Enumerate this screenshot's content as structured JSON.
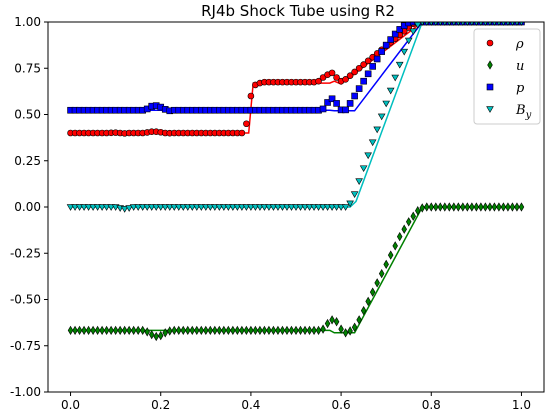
{
  "chart_data": {
    "type": "line",
    "title": "RJ4b Shock Tube using R2",
    "xlabel": "",
    "ylabel": "",
    "xlim": [
      -0.05,
      1.05
    ],
    "ylim": [
      -1.0,
      1.0
    ],
    "xticks": [
      "0.0",
      "0.2",
      "0.4",
      "0.6",
      "0.8",
      "1.0"
    ],
    "yticks": [
      "-1.00",
      "-0.75",
      "-0.50",
      "-0.25",
      "0.00",
      "0.25",
      "0.50",
      "0.75",
      "1.00"
    ],
    "grid": false,
    "legend_position": "top-right",
    "legend": [
      {
        "label": "ρ",
        "marker": "circle",
        "fill": "#ff0000"
      },
      {
        "label": "u",
        "marker": "diamond",
        "fill": "#008000"
      },
      {
        "label": "p",
        "marker": "square",
        "fill": "#0000ff"
      },
      {
        "label": "B",
        "sub": "y",
        "marker": "triangle-down",
        "fill": "#00bfbf"
      }
    ],
    "series": [
      {
        "name": "ρ",
        "role": "exact",
        "color": "#ff0000",
        "x": [
          0.0,
          0.395,
          0.405,
          0.575,
          0.585,
          0.6,
          0.78,
          1.0
        ],
        "y": [
          0.4,
          0.4,
          0.67,
          0.67,
          0.68,
          0.665,
          1.0,
          1.0
        ]
      },
      {
        "name": "u",
        "role": "exact",
        "color": "#008000",
        "x": [
          0.0,
          0.575,
          0.585,
          0.63,
          0.78,
          1.0
        ],
        "y": [
          -0.667,
          -0.667,
          -0.68,
          -0.68,
          0.0,
          0.0
        ]
      },
      {
        "name": "p",
        "role": "exact",
        "color": "#0000ff",
        "x": [
          0.0,
          0.575,
          0.585,
          0.63,
          0.78,
          1.0
        ],
        "y": [
          0.523,
          0.523,
          0.52,
          0.52,
          1.0,
          1.0
        ]
      },
      {
        "name": "B_y",
        "role": "exact",
        "color": "#00bfbf",
        "x": [
          0.0,
          0.62,
          0.633,
          0.78,
          1.0
        ],
        "y": [
          0.0,
          0.0,
          0.03,
          1.0,
          1.0
        ]
      },
      {
        "name": "ρ",
        "role": "numerical",
        "marker": "circle",
        "fill": "#ff0000",
        "x": [
          0.0,
          0.01,
          0.02,
          0.03,
          0.04,
          0.05,
          0.06,
          0.07,
          0.08,
          0.09,
          0.1,
          0.11,
          0.12,
          0.13,
          0.14,
          0.15,
          0.16,
          0.17,
          0.18,
          0.19,
          0.2,
          0.21,
          0.22,
          0.23,
          0.24,
          0.25,
          0.26,
          0.27,
          0.28,
          0.29,
          0.3,
          0.31,
          0.32,
          0.33,
          0.34,
          0.35,
          0.36,
          0.37,
          0.38,
          0.39,
          0.4,
          0.41,
          0.42,
          0.43,
          0.44,
          0.45,
          0.46,
          0.47,
          0.48,
          0.49,
          0.5,
          0.51,
          0.52,
          0.53,
          0.54,
          0.55,
          0.56,
          0.57,
          0.58,
          0.59,
          0.6,
          0.61,
          0.62,
          0.63,
          0.64,
          0.65,
          0.66,
          0.67,
          0.68,
          0.69,
          0.7,
          0.71,
          0.72,
          0.73,
          0.74,
          0.75,
          0.76,
          0.77,
          0.78,
          0.79,
          0.8,
          0.81,
          0.82,
          0.83,
          0.84,
          0.85,
          0.86,
          0.87,
          0.88,
          0.89,
          0.9,
          0.91,
          0.92,
          0.93,
          0.94,
          0.95,
          0.96,
          0.97,
          0.98,
          0.99,
          1.0
        ],
        "y": [
          0.4,
          0.4,
          0.4,
          0.4,
          0.4,
          0.4,
          0.4,
          0.4,
          0.4,
          0.401,
          0.402,
          0.4,
          0.398,
          0.4,
          0.4,
          0.4,
          0.4,
          0.403,
          0.407,
          0.407,
          0.404,
          0.4,
          0.399,
          0.4,
          0.4,
          0.4,
          0.4,
          0.4,
          0.4,
          0.4,
          0.4,
          0.4,
          0.4,
          0.4,
          0.4,
          0.4,
          0.4,
          0.4,
          0.4,
          0.45,
          0.6,
          0.66,
          0.67,
          0.675,
          0.675,
          0.675,
          0.675,
          0.675,
          0.675,
          0.675,
          0.675,
          0.675,
          0.675,
          0.675,
          0.675,
          0.68,
          0.7,
          0.715,
          0.725,
          0.7,
          0.68,
          0.69,
          0.71,
          0.73,
          0.75,
          0.77,
          0.79,
          0.81,
          0.83,
          0.85,
          0.87,
          0.89,
          0.91,
          0.93,
          0.95,
          0.97,
          0.99,
          1.0,
          1.0,
          1.0,
          1.0,
          1.0,
          1.0,
          1.0,
          1.0,
          1.0,
          1.0,
          1.0,
          1.0,
          1.0,
          1.0,
          1.0,
          1.0,
          1.0,
          1.0,
          1.0,
          1.0,
          1.0,
          1.0,
          1.0,
          1.0
        ]
      },
      {
        "name": "u",
        "role": "numerical",
        "marker": "diamond",
        "fill": "#008000",
        "x": [
          0.0,
          0.01,
          0.02,
          0.03,
          0.04,
          0.05,
          0.06,
          0.07,
          0.08,
          0.09,
          0.1,
          0.11,
          0.12,
          0.13,
          0.14,
          0.15,
          0.16,
          0.17,
          0.18,
          0.19,
          0.2,
          0.21,
          0.22,
          0.23,
          0.24,
          0.25,
          0.26,
          0.27,
          0.28,
          0.29,
          0.3,
          0.31,
          0.32,
          0.33,
          0.34,
          0.35,
          0.36,
          0.37,
          0.38,
          0.39,
          0.4,
          0.41,
          0.42,
          0.43,
          0.44,
          0.45,
          0.46,
          0.47,
          0.48,
          0.49,
          0.5,
          0.51,
          0.52,
          0.53,
          0.54,
          0.55,
          0.56,
          0.57,
          0.58,
          0.59,
          0.6,
          0.61,
          0.62,
          0.63,
          0.64,
          0.65,
          0.66,
          0.67,
          0.68,
          0.69,
          0.7,
          0.71,
          0.72,
          0.73,
          0.74,
          0.75,
          0.76,
          0.77,
          0.78,
          0.79,
          0.8,
          0.81,
          0.82,
          0.83,
          0.84,
          0.85,
          0.86,
          0.87,
          0.88,
          0.89,
          0.9,
          0.91,
          0.92,
          0.93,
          0.94,
          0.95,
          0.96,
          0.97,
          0.98,
          0.99,
          1.0
        ],
        "y": [
          -0.667,
          -0.667,
          -0.667,
          -0.667,
          -0.667,
          -0.667,
          -0.667,
          -0.667,
          -0.667,
          -0.667,
          -0.667,
          -0.667,
          -0.667,
          -0.667,
          -0.667,
          -0.667,
          -0.667,
          -0.675,
          -0.69,
          -0.7,
          -0.695,
          -0.68,
          -0.67,
          -0.667,
          -0.667,
          -0.667,
          -0.667,
          -0.667,
          -0.667,
          -0.667,
          -0.667,
          -0.667,
          -0.667,
          -0.667,
          -0.667,
          -0.667,
          -0.667,
          -0.667,
          -0.667,
          -0.667,
          -0.667,
          -0.667,
          -0.667,
          -0.667,
          -0.667,
          -0.667,
          -0.667,
          -0.667,
          -0.667,
          -0.667,
          -0.667,
          -0.667,
          -0.667,
          -0.667,
          -0.667,
          -0.667,
          -0.66,
          -0.63,
          -0.61,
          -0.62,
          -0.66,
          -0.68,
          -0.67,
          -0.65,
          -0.61,
          -0.56,
          -0.51,
          -0.46,
          -0.41,
          -0.36,
          -0.31,
          -0.26,
          -0.21,
          -0.16,
          -0.12,
          -0.08,
          -0.05,
          -0.02,
          -0.005,
          0.0,
          0.0,
          0.0,
          0.0,
          0.0,
          0.0,
          0.0,
          0.0,
          0.0,
          0.0,
          0.0,
          0.0,
          0.0,
          0.0,
          0.0,
          0.0,
          0.0,
          0.0,
          0.0,
          0.0,
          0.0,
          0.0
        ]
      },
      {
        "name": "p",
        "role": "numerical",
        "marker": "square",
        "fill": "#0000ff",
        "x": [
          0.0,
          0.01,
          0.02,
          0.03,
          0.04,
          0.05,
          0.06,
          0.07,
          0.08,
          0.09,
          0.1,
          0.11,
          0.12,
          0.13,
          0.14,
          0.15,
          0.16,
          0.17,
          0.18,
          0.19,
          0.2,
          0.21,
          0.22,
          0.23,
          0.24,
          0.25,
          0.26,
          0.27,
          0.28,
          0.29,
          0.3,
          0.31,
          0.32,
          0.33,
          0.34,
          0.35,
          0.36,
          0.37,
          0.38,
          0.39,
          0.4,
          0.41,
          0.42,
          0.43,
          0.44,
          0.45,
          0.46,
          0.47,
          0.48,
          0.49,
          0.5,
          0.51,
          0.52,
          0.53,
          0.54,
          0.55,
          0.56,
          0.57,
          0.58,
          0.59,
          0.6,
          0.61,
          0.62,
          0.63,
          0.64,
          0.65,
          0.66,
          0.67,
          0.68,
          0.69,
          0.7,
          0.71,
          0.72,
          0.73,
          0.74,
          0.75,
          0.76,
          0.77,
          0.78,
          0.79,
          0.8,
          0.81,
          0.82,
          0.83,
          0.84,
          0.85,
          0.86,
          0.87,
          0.88,
          0.89,
          0.9,
          0.91,
          0.92,
          0.93,
          0.94,
          0.95,
          0.96,
          0.97,
          0.98,
          0.99,
          1.0
        ],
        "y": [
          0.523,
          0.523,
          0.523,
          0.523,
          0.523,
          0.523,
          0.523,
          0.523,
          0.523,
          0.523,
          0.523,
          0.523,
          0.523,
          0.523,
          0.523,
          0.523,
          0.523,
          0.53,
          0.545,
          0.548,
          0.54,
          0.528,
          0.52,
          0.523,
          0.523,
          0.523,
          0.523,
          0.523,
          0.523,
          0.523,
          0.523,
          0.523,
          0.523,
          0.523,
          0.523,
          0.523,
          0.523,
          0.523,
          0.523,
          0.523,
          0.523,
          0.523,
          0.523,
          0.523,
          0.523,
          0.523,
          0.523,
          0.523,
          0.523,
          0.523,
          0.523,
          0.523,
          0.523,
          0.523,
          0.523,
          0.523,
          0.53,
          0.565,
          0.585,
          0.56,
          0.525,
          0.525,
          0.56,
          0.6,
          0.64,
          0.68,
          0.72,
          0.76,
          0.8,
          0.84,
          0.875,
          0.905,
          0.935,
          0.96,
          0.98,
          0.995,
          1.0,
          1.0,
          1.0,
          1.0,
          1.0,
          1.0,
          1.0,
          1.0,
          1.0,
          1.0,
          1.0,
          1.0,
          1.0,
          1.0,
          1.0,
          1.0,
          1.0,
          1.0,
          1.0,
          1.0,
          1.0,
          1.0,
          1.0,
          1.0,
          1.0
        ]
      },
      {
        "name": "B_y",
        "role": "numerical",
        "marker": "triangle-down",
        "fill": "#00bfbf",
        "x": [
          0.0,
          0.01,
          0.02,
          0.03,
          0.04,
          0.05,
          0.06,
          0.07,
          0.08,
          0.09,
          0.1,
          0.11,
          0.12,
          0.13,
          0.14,
          0.15,
          0.16,
          0.17,
          0.18,
          0.19,
          0.2,
          0.21,
          0.22,
          0.23,
          0.24,
          0.25,
          0.26,
          0.27,
          0.28,
          0.29,
          0.3,
          0.31,
          0.32,
          0.33,
          0.34,
          0.35,
          0.36,
          0.37,
          0.38,
          0.39,
          0.4,
          0.41,
          0.42,
          0.43,
          0.44,
          0.45,
          0.46,
          0.47,
          0.48,
          0.49,
          0.5,
          0.51,
          0.52,
          0.53,
          0.54,
          0.55,
          0.56,
          0.57,
          0.58,
          0.59,
          0.6,
          0.61,
          0.62,
          0.63,
          0.64,
          0.65,
          0.66,
          0.67,
          0.68,
          0.69,
          0.7,
          0.71,
          0.72,
          0.73,
          0.74,
          0.75,
          0.76,
          0.77,
          0.78,
          0.79,
          0.8,
          0.81,
          0.82,
          0.83,
          0.84,
          0.85,
          0.86,
          0.87,
          0.88,
          0.89,
          0.9,
          0.91,
          0.92,
          0.93,
          0.94,
          0.95,
          0.96,
          0.97,
          0.98,
          0.99,
          1.0
        ],
        "y": [
          0.0,
          0.0,
          0.0,
          0.0,
          0.0,
          0.0,
          0.0,
          0.0,
          0.0,
          0.0,
          0.0,
          -0.005,
          -0.01,
          -0.005,
          0.0,
          0.0,
          0.0,
          0.0,
          0.0,
          0.0,
          0.0,
          0.0,
          0.0,
          0.0,
          0.0,
          0.0,
          0.0,
          0.0,
          0.0,
          0.0,
          0.0,
          0.0,
          0.0,
          0.0,
          0.0,
          0.0,
          0.0,
          0.0,
          0.0,
          0.0,
          0.0,
          0.0,
          0.0,
          0.0,
          0.0,
          0.0,
          0.0,
          0.0,
          0.0,
          0.0,
          0.0,
          0.0,
          0.0,
          0.0,
          0.0,
          0.0,
          0.0,
          0.0,
          0.0,
          0.0,
          0.0,
          0.0,
          0.02,
          0.07,
          0.14,
          0.21,
          0.28,
          0.35,
          0.42,
          0.49,
          0.56,
          0.63,
          0.7,
          0.77,
          0.84,
          0.9,
          0.95,
          0.985,
          1.0,
          1.0,
          1.0,
          1.0,
          1.0,
          1.0,
          1.0,
          1.0,
          1.0,
          1.0,
          1.0,
          1.0,
          1.0,
          1.0,
          1.0,
          1.0,
          1.0,
          1.0,
          1.0,
          1.0,
          1.0,
          1.0,
          1.0
        ]
      }
    ]
  }
}
